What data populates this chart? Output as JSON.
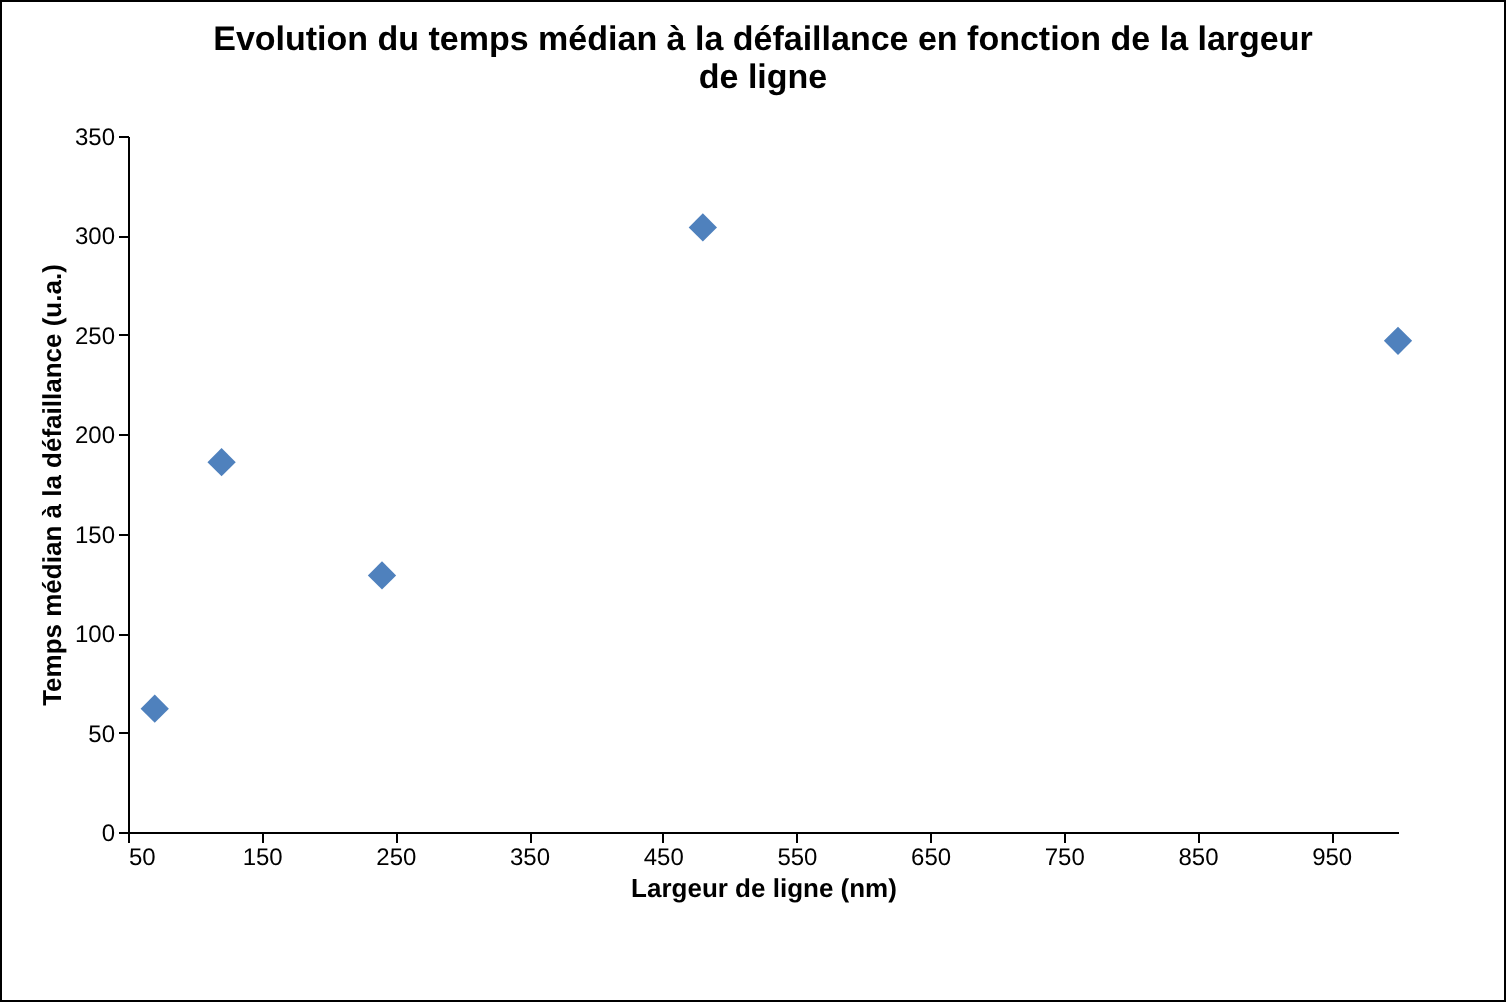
{
  "chart_data": {
    "type": "scatter",
    "title": "Evolution du temps médian à la défaillance en fonction de la largeur de ligne",
    "xlabel": "Largeur de ligne (nm)",
    "ylabel": "Temps médian à la défaillance (u.a.)",
    "x": [
      70,
      120,
      240,
      480,
      1000
    ],
    "series": [
      {
        "color": "#4f81bd",
        "values": [
          62,
          186,
          129,
          304,
          247
        ]
      }
    ],
    "xlim": [
      50,
      1000
    ],
    "xticks": [
      50,
      150,
      250,
      350,
      450,
      550,
      650,
      750,
      850,
      950
    ],
    "ylim": [
      0,
      350
    ],
    "yticks": [
      0,
      50,
      100,
      150,
      200,
      250,
      300,
      350
    ],
    "marker": "diamond",
    "grid": false
  }
}
